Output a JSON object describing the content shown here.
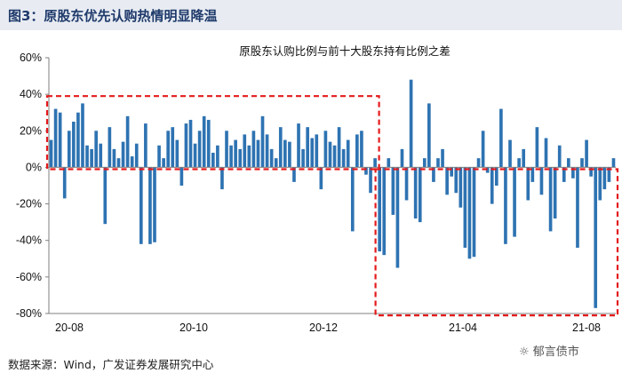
{
  "figure": {
    "title": "图3：原股东优先认购热情明显降温",
    "source": "数据来源：Wind，广发证券发展研究中心",
    "watermark": "郁言债市"
  },
  "chart_data": {
    "type": "bar",
    "title": "原股东认购比例与前十大股东持有比例之差",
    "xlabel": "",
    "ylabel": "",
    "ylim": [
      -80,
      60
    ],
    "y_ticks": [
      "60%",
      "40%",
      "20%",
      "0%",
      "-20%",
      "-40%",
      "-60%",
      "-80%"
    ],
    "y_tick_values": [
      60,
      40,
      20,
      0,
      -20,
      -40,
      -60,
      -80
    ],
    "x_ticks": [
      "20-08",
      "20-10",
      "20-12",
      "21-04",
      "21-08"
    ],
    "grid": false,
    "legend": "none",
    "bar_color": "#2e73b2",
    "highlight_color": "#e41a1c",
    "highlight_boxes": [
      {
        "from_index": 0,
        "to_index": 72,
        "y_range": [
          -1,
          39
        ]
      },
      {
        "from_index": 73,
        "to_index": 125,
        "y_range": [
          -81,
          -1
        ]
      }
    ],
    "values": [
      15,
      32,
      30,
      -17,
      20,
      25,
      30,
      35,
      12,
      10,
      20,
      13,
      -31,
      22,
      10,
      5,
      14,
      28,
      6,
      13,
      -42,
      24,
      -42,
      -41,
      12,
      5,
      20,
      22,
      15,
      -10,
      24,
      26,
      13,
      20,
      28,
      26,
      8,
      12,
      -12,
      20,
      12,
      15,
      10,
      18,
      12,
      20,
      15,
      28,
      18,
      10,
      5,
      22,
      15,
      14,
      -8,
      24,
      10,
      22,
      16,
      18,
      -12,
      20,
      14,
      12,
      22,
      10,
      15,
      -35,
      18,
      20,
      -4,
      -14,
      5,
      -46,
      -48,
      5,
      -26,
      -55,
      10,
      -18,
      48,
      -28,
      -30,
      5,
      35,
      -8,
      5,
      10,
      -15,
      -5,
      -14,
      -22,
      -44,
      -50,
      -49,
      5,
      20,
      -3,
      -20,
      -10,
      32,
      -42,
      15,
      -38,
      5,
      10,
      -18,
      -8,
      22,
      -15,
      16,
      -35,
      -28,
      12,
      -8,
      5,
      -6,
      -44,
      5,
      15,
      -5,
      -77,
      -18,
      -12,
      -8,
      5
    ]
  }
}
